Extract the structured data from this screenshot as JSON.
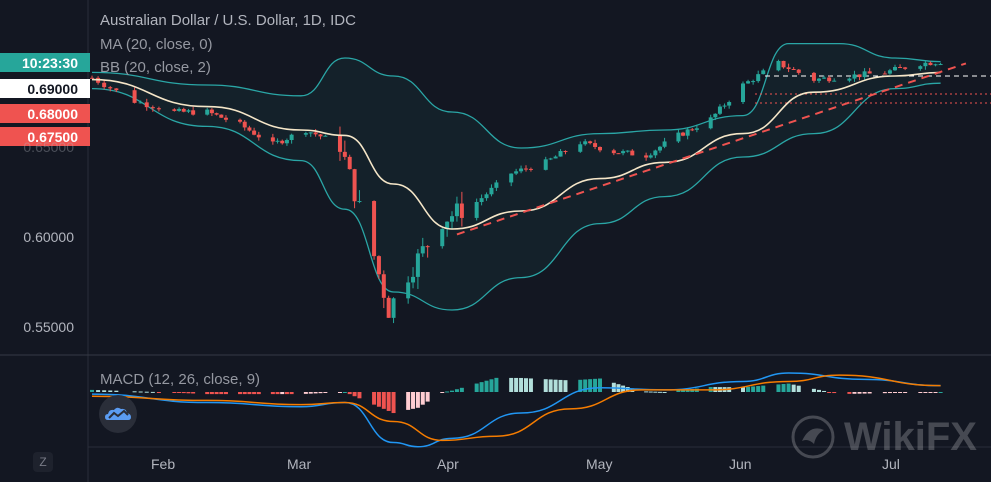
{
  "header": {
    "title": "Australian Dollar / U.S. Dollar, 1D, IDC",
    "ma_label": "MA (20, close, 0)",
    "bb_label": "BB (20, close, 2)",
    "macd_label": "MACD (12, 26, close, 9)"
  },
  "price_tags": [
    {
      "label": "10:23:30",
      "bg": "#26a69a",
      "fg": "#ffffff"
    },
    {
      "label": "0.69000",
      "bg": "#ffffff",
      "fg": "#131722"
    },
    {
      "label": "0.68000",
      "bg": "#ef5350",
      "fg": "#ffffff"
    },
    {
      "label": "0.67500",
      "bg": "#ef5350",
      "fg": "#ffffff"
    }
  ],
  "z_button": "Z",
  "watermark": "WikiFX",
  "colors": {
    "background": "#131722",
    "up": "#26a69a",
    "down": "#ef5350",
    "ma": "#f5e6c8",
    "bb": "#2aa6a6",
    "trend": "#ef5350",
    "macd_line": "#2196f3",
    "signal_line": "#f57c00"
  },
  "chart_data": {
    "type": "candlestick",
    "title": "Australian Dollar / U.S. Dollar, 1D, IDC",
    "y_ticks": [
      "0.55000",
      "0.60000",
      "0.65000"
    ],
    "x_ticks": [
      "Feb",
      "Mar",
      "Apr",
      "May",
      "Jun",
      "Jul"
    ],
    "ylim": [
      0.54,
      0.71
    ],
    "x_range": [
      "2020-01-20",
      "2020-07-15"
    ],
    "x_tick_dates": [
      "2020-02-01",
      "2020-03-01",
      "2020-04-01",
      "2020-05-01",
      "2020-06-01",
      "2020-07-01"
    ],
    "horizontal_levels": [
      {
        "value": 0.69,
        "style": "white-dashed"
      },
      {
        "value": 0.68,
        "style": "red-dotted"
      },
      {
        "value": 0.675,
        "style": "red-dotted"
      }
    ],
    "trendline": {
      "start": [
        "2020-04-02",
        0.602
      ],
      "end": [
        "2020-07-15",
        0.697
      ]
    },
    "close_series": [
      [
        "2020-01-20",
        0.689
      ],
      [
        "2020-01-27",
        0.676
      ],
      [
        "2020-02-03",
        0.67
      ],
      [
        "2020-02-10",
        0.67
      ],
      [
        "2020-02-17",
        0.663
      ],
      [
        "2020-02-24",
        0.652
      ],
      [
        "2020-03-02",
        0.66
      ],
      [
        "2020-03-09",
        0.652
      ],
      [
        "2020-03-16",
        0.59
      ],
      [
        "2020-03-19",
        0.56
      ],
      [
        "2020-03-23",
        0.58
      ],
      [
        "2020-03-30",
        0.61
      ],
      [
        "2020-04-06",
        0.62
      ],
      [
        "2020-04-13",
        0.636
      ],
      [
        "2020-04-20",
        0.642
      ],
      [
        "2020-04-27",
        0.653
      ],
      [
        "2020-05-04",
        0.648
      ],
      [
        "2020-05-11",
        0.646
      ],
      [
        "2020-05-18",
        0.657
      ],
      [
        "2020-05-25",
        0.666
      ],
      [
        "2020-06-01",
        0.685
      ],
      [
        "2020-06-08",
        0.697
      ],
      [
        "2020-06-15",
        0.688
      ],
      [
        "2020-06-22",
        0.69
      ],
      [
        "2020-06-29",
        0.692
      ],
      [
        "2020-07-06",
        0.697
      ],
      [
        "2020-07-10",
        0.698
      ]
    ],
    "ma_series": [
      [
        "2020-01-20",
        0.688
      ],
      [
        "2020-02-10",
        0.673
      ],
      [
        "2020-03-01",
        0.66
      ],
      [
        "2020-03-10",
        0.657
      ],
      [
        "2020-03-20",
        0.63
      ],
      [
        "2020-04-01",
        0.605
      ],
      [
        "2020-04-15",
        0.615
      ],
      [
        "2020-05-01",
        0.633
      ],
      [
        "2020-05-15",
        0.642
      ],
      [
        "2020-06-01",
        0.658
      ],
      [
        "2020-06-15",
        0.681
      ],
      [
        "2020-07-01",
        0.69
      ],
      [
        "2020-07-10",
        0.692
      ]
    ],
    "bb_upper": [
      [
        "2020-01-20",
        0.692
      ],
      [
        "2020-02-10",
        0.685
      ],
      [
        "2020-03-01",
        0.679
      ],
      [
        "2020-03-10",
        0.7
      ],
      [
        "2020-03-20",
        0.69
      ],
      [
        "2020-04-01",
        0.67
      ],
      [
        "2020-04-15",
        0.65
      ],
      [
        "2020-05-01",
        0.658
      ],
      [
        "2020-05-15",
        0.66
      ],
      [
        "2020-06-01",
        0.668
      ],
      [
        "2020-06-10",
        0.708
      ],
      [
        "2020-06-20",
        0.708
      ],
      [
        "2020-07-01",
        0.7
      ],
      [
        "2020-07-10",
        0.698
      ]
    ],
    "bb_lower": [
      [
        "2020-01-20",
        0.683
      ],
      [
        "2020-02-10",
        0.662
      ],
      [
        "2020-03-01",
        0.643
      ],
      [
        "2020-03-10",
        0.616
      ],
      [
        "2020-03-20",
        0.57
      ],
      [
        "2020-04-01",
        0.56
      ],
      [
        "2020-04-15",
        0.578
      ],
      [
        "2020-05-01",
        0.608
      ],
      [
        "2020-05-15",
        0.623
      ],
      [
        "2020-06-01",
        0.645
      ],
      [
        "2020-06-15",
        0.658
      ],
      [
        "2020-07-01",
        0.683
      ],
      [
        "2020-07-10",
        0.686
      ]
    ],
    "macd": {
      "label": "MACD (12, 26, close, 9)",
      "ylim": [
        -0.03,
        0.008
      ],
      "macd_line": [
        [
          "2020-01-20",
          -0.001
        ],
        [
          "2020-02-10",
          -0.005
        ],
        [
          "2020-03-01",
          -0.007
        ],
        [
          "2020-03-10",
          -0.005
        ],
        [
          "2020-03-20",
          -0.024
        ],
        [
          "2020-03-25",
          -0.026
        ],
        [
          "2020-04-01",
          -0.022
        ],
        [
          "2020-04-15",
          -0.01
        ],
        [
          "2020-05-01",
          0.002
        ],
        [
          "2020-05-15",
          0.001
        ],
        [
          "2020-06-01",
          0.005
        ],
        [
          "2020-06-10",
          0.009
        ],
        [
          "2020-06-25",
          0.006
        ],
        [
          "2020-07-10",
          0.003
        ]
      ],
      "signal_line": [
        [
          "2020-01-20",
          -0.002
        ],
        [
          "2020-02-10",
          -0.004
        ],
        [
          "2020-03-01",
          -0.006
        ],
        [
          "2020-03-10",
          -0.005
        ],
        [
          "2020-03-20",
          -0.014
        ],
        [
          "2020-03-30",
          -0.023
        ],
        [
          "2020-04-10",
          -0.021
        ],
        [
          "2020-04-25",
          -0.008
        ],
        [
          "2020-05-10",
          0.001
        ],
        [
          "2020-05-25",
          0.001
        ],
        [
          "2020-06-10",
          0.005
        ],
        [
          "2020-06-20",
          0.008
        ],
        [
          "2020-07-10",
          0.003
        ]
      ]
    }
  }
}
